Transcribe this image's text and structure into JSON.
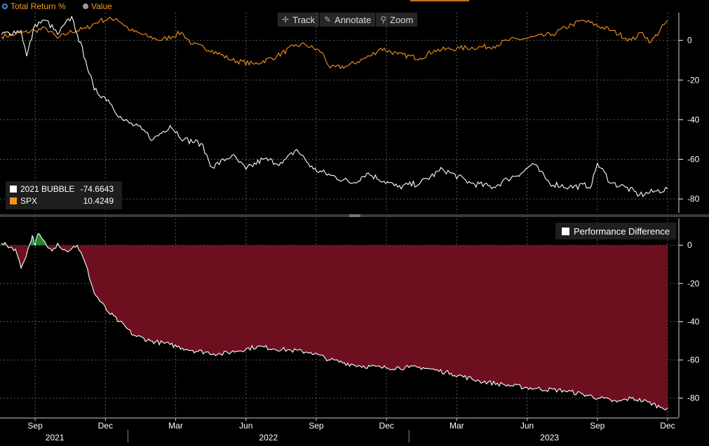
{
  "header": {
    "mode_total_return": "Total Return %",
    "mode_value": "Value"
  },
  "toolbar": {
    "track_label": "Track",
    "annotate_label": "Annotate",
    "zoom_label": "Zoom"
  },
  "legend_top": [
    {
      "name": "2021 BUBBLE",
      "value": "-74.6643",
      "color": "#ffffff"
    },
    {
      "name": "SPX",
      "value": "10.4249",
      "color": "#f7931e"
    }
  ],
  "legend_bottom": {
    "label": "Performance Difference"
  },
  "colors": {
    "spx": "#f7931e",
    "bubble": "#ffffff",
    "neg_fill": "#6e0f20",
    "pos_fill": "#1e8a2a",
    "grid": "#5a5a5a"
  },
  "chart_data": [
    {
      "type": "line",
      "title": "Total Return %",
      "ylim": [
        -87,
        14
      ],
      "yticks": [
        0,
        -20,
        -40,
        -60,
        -80
      ],
      "series": [
        {
          "name": "SPX",
          "x": [
            2021.55,
            2021.6,
            2021.67,
            2021.71,
            2021.75,
            2021.79,
            2021.85,
            2021.9,
            2021.96,
            2022.01,
            2022.07,
            2022.12,
            2022.19,
            2022.23,
            2022.3,
            2022.37,
            2022.45,
            2022.53,
            2022.59,
            2022.63,
            2022.69,
            2022.72,
            2022.78,
            2022.86,
            2022.9,
            2022.96,
            2023.04,
            2023.09,
            2023.18,
            2023.3,
            2023.35,
            2023.42,
            2023.51,
            2023.58,
            2023.62,
            2023.72,
            2023.79,
            2023.83,
            2023.86,
            2023.92
          ],
          "values": [
            2,
            3,
            5,
            6,
            1,
            4,
            6,
            10,
            11,
            5,
            2,
            0,
            4,
            -2,
            -5,
            -10,
            -12,
            -8,
            -3,
            -2,
            -6,
            -14,
            -13,
            -8,
            -4,
            -7,
            -9,
            -5,
            -4,
            -3,
            0,
            1,
            3,
            8,
            10,
            5,
            0,
            4,
            -1,
            10
          ]
        },
        {
          "name": "2021 BUBBLE",
          "x": [
            2021.55,
            2021.62,
            2021.64,
            2021.67,
            2021.71,
            2021.75,
            2021.8,
            2021.82,
            2021.85,
            2021.88,
            2021.93,
            2021.98,
            2022.05,
            2022.09,
            2022.15,
            2022.2,
            2022.26,
            2022.3,
            2022.37,
            2022.42,
            2022.48,
            2022.55,
            2022.6,
            2022.66,
            2022.72,
            2022.8,
            2022.85,
            2022.96,
            2023.04,
            2023.12,
            2023.22,
            2023.3,
            2023.35,
            2023.41,
            2023.44,
            2023.5,
            2023.57,
            2023.65,
            2023.67,
            2023.72,
            2023.77,
            2023.82,
            2023.88,
            2023.92
          ],
          "values": [
            3,
            5,
            -8,
            8,
            10,
            3,
            12,
            3,
            -10,
            -25,
            -30,
            -40,
            -45,
            -50,
            -43,
            -50,
            -52,
            -64,
            -58,
            -65,
            -60,
            -62,
            -55,
            -65,
            -68,
            -72,
            -67,
            -74,
            -72,
            -65,
            -72,
            -74,
            -70,
            -66,
            -62,
            -72,
            -74,
            -73,
            -62,
            -72,
            -74,
            -78,
            -76,
            -75
          ]
        }
      ]
    },
    {
      "type": "area",
      "title": "Performance Difference",
      "ylim": [
        -90,
        14
      ],
      "yticks": [
        0,
        -20,
        -40,
        -60,
        -80
      ],
      "series": [
        {
          "name": "Performance Difference",
          "x": [
            2021.55,
            2021.6,
            2021.62,
            2021.65,
            2021.66,
            2021.67,
            2021.68,
            2021.71,
            2021.73,
            2021.75,
            2021.78,
            2021.82,
            2021.85,
            2021.88,
            2021.93,
            2021.97,
            2022.02,
            2022.08,
            2022.15,
            2022.23,
            2022.33,
            2022.46,
            2022.58,
            2022.65,
            2022.72,
            2022.82,
            2022.9,
            2023.0,
            2023.05,
            2023.15,
            2023.25,
            2023.34,
            2023.45,
            2023.55,
            2023.62,
            2023.68,
            2023.74,
            2023.79,
            2023.85,
            2023.9,
            2023.92
          ],
          "values": [
            1,
            -2,
            -12,
            0,
            5,
            0,
            6,
            0,
            -3,
            1,
            -3,
            0,
            -10,
            -25,
            -35,
            -40,
            -47,
            -50,
            -52,
            -55,
            -57,
            -53,
            -55,
            -56,
            -60,
            -63,
            -64,
            -64,
            -64,
            -67,
            -71,
            -73,
            -75,
            -76,
            -78,
            -80,
            -82,
            -80,
            -82,
            -85,
            -85
          ]
        }
      ]
    }
  ],
  "x_axis": {
    "months": [
      {
        "label": "Sep",
        "x": 2021.67
      },
      {
        "label": "Dec",
        "x": 2021.92
      },
      {
        "label": "Mar",
        "x": 2022.17
      },
      {
        "label": "Jun",
        "x": 2022.42
      },
      {
        "label": "Sep",
        "x": 2022.67
      },
      {
        "label": "Dec",
        "x": 2022.92
      },
      {
        "label": "Mar",
        "x": 2023.17
      },
      {
        "label": "Jun",
        "x": 2023.42
      },
      {
        "label": "Sep",
        "x": 2023.67
      },
      {
        "label": "Dec",
        "x": 2023.92
      }
    ],
    "years": [
      {
        "label": "2021",
        "x": 2021.74
      },
      {
        "label": "2022",
        "x": 2022.5
      },
      {
        "label": "2023",
        "x": 2023.5
      }
    ]
  }
}
